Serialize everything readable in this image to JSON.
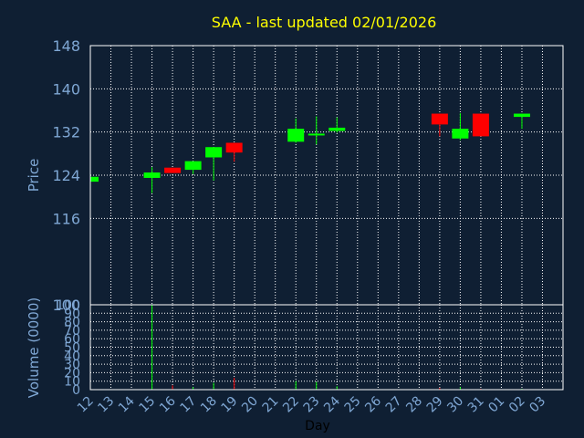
{
  "chart_data": {
    "type": "candlestick",
    "title": "SAA - last updated 02/01/2026",
    "xlabel": "Day",
    "price_ylabel": "Price",
    "volume_ylabel": "Volume (0000)",
    "price_ylim": [
      100,
      148
    ],
    "price_ticks": [
      "148",
      "140",
      "132",
      "124",
      "116",
      "100"
    ],
    "volume_ylim": [
      0,
      100
    ],
    "volume_ticks": [
      "100",
      "90",
      "80",
      "70",
      "60",
      "50",
      "40",
      "30",
      "20",
      "10",
      "0"
    ],
    "x_ticks": [
      "12",
      "13",
      "14",
      "15",
      "16",
      "17",
      "18",
      "19",
      "20",
      "21",
      "22",
      "23",
      "24",
      "25",
      "26",
      "27",
      "28",
      "29",
      "30",
      "31",
      "01",
      "02",
      "03"
    ],
    "grid": true,
    "colors": {
      "up": "#00ff00",
      "down": "#ff0000",
      "background": "#0f1f33",
      "title": "#ffff00",
      "axis_text": "#7fa7d4"
    },
    "candles": [
      {
        "day": "12",
        "open": 122.8,
        "close": 123.7,
        "high": 123.7,
        "low": 122.8,
        "volume": 0
      },
      {
        "day": "15",
        "open": 123.5,
        "close": 124.5,
        "high": 125.5,
        "low": 120.7,
        "volume": 100
      },
      {
        "day": "16",
        "open": 125.4,
        "close": 124.4,
        "high": 125.4,
        "low": 124.4,
        "volume": 5
      },
      {
        "day": "17",
        "open": 125.0,
        "close": 126.6,
        "high": 126.6,
        "low": 124.2,
        "volume": 3
      },
      {
        "day": "18",
        "open": 127.3,
        "close": 129.2,
        "high": 129.2,
        "low": 123.0,
        "volume": 8
      },
      {
        "day": "19",
        "open": 130.0,
        "close": 128.2,
        "high": 130.0,
        "low": 126.5,
        "volume": 14
      },
      {
        "day": "22",
        "open": 130.2,
        "close": 132.6,
        "high": 134.5,
        "low": 130.0,
        "volume": 10
      },
      {
        "day": "23",
        "open": 131.4,
        "close": 131.7,
        "high": 134.9,
        "low": 129.7,
        "volume": 9
      },
      {
        "day": "24",
        "open": 132.2,
        "close": 132.8,
        "high": 134.7,
        "low": 131.9,
        "volume": 4
      },
      {
        "day": "29",
        "open": 135.4,
        "close": 133.4,
        "high": 135.4,
        "low": 131.2,
        "volume": 2
      },
      {
        "day": "30",
        "open": 130.8,
        "close": 132.6,
        "high": 135.5,
        "low": 130.5,
        "volume": 3
      },
      {
        "day": "31",
        "open": 135.4,
        "close": 131.2,
        "high": 135.4,
        "low": 131.2,
        "volume": 1
      },
      {
        "day": "02",
        "open": 134.8,
        "close": 135.4,
        "high": 135.4,
        "low": 132.6,
        "volume": 1
      }
    ]
  }
}
